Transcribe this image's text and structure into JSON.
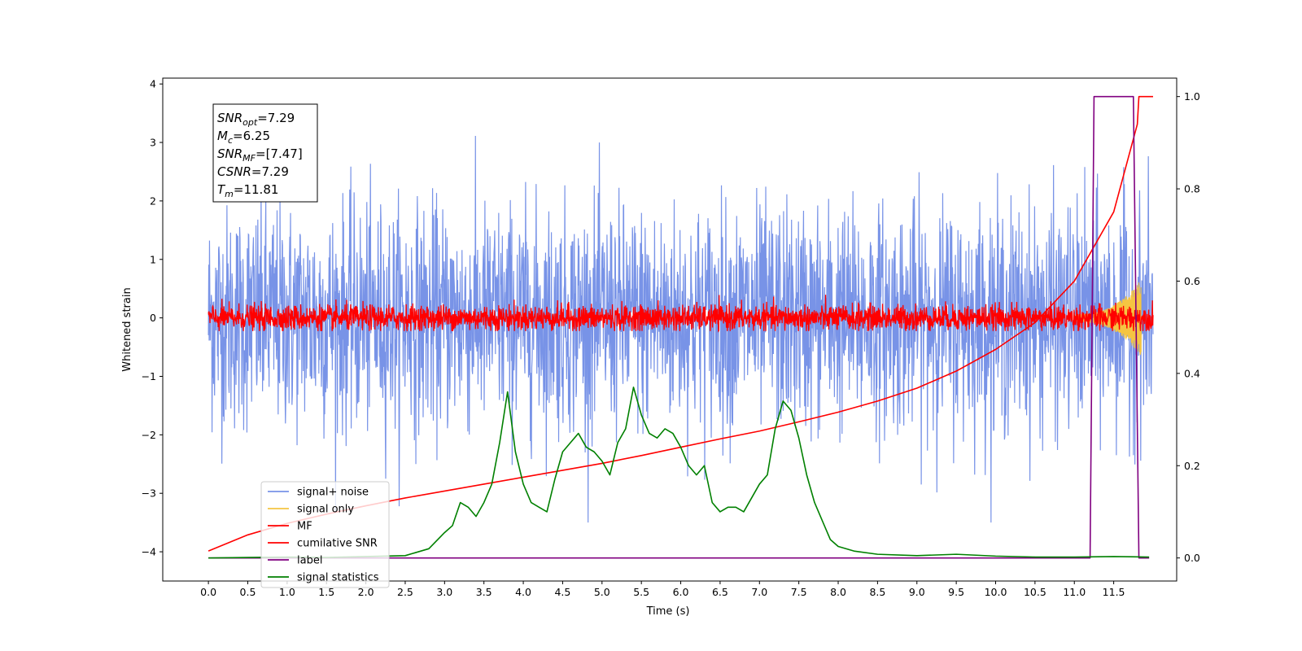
{
  "chart_data": {
    "type": "line",
    "title": "",
    "xlabel": "Time (s)",
    "ylabel_left": "Whitened strain",
    "ylabel_right": "",
    "xlim": [
      -0.58,
      12.3
    ],
    "ylim_left": [
      -4.5,
      4.1
    ],
    "ylim_right": [
      -0.05,
      1.04
    ],
    "x_ticks": [
      0.0,
      0.5,
      1.0,
      1.5,
      2.0,
      2.5,
      3.0,
      3.5,
      4.0,
      4.5,
      5.0,
      5.5,
      6.0,
      6.5,
      7.0,
      7.5,
      8.0,
      8.5,
      9.0,
      9.5,
      10.0,
      10.5,
      11.0,
      11.5
    ],
    "x_tick_labels": [
      "0.0",
      "0.5",
      "1.0",
      "1.5",
      "2.0",
      "2.5",
      "3.0",
      "3.5",
      "4.0",
      "4.5",
      "5.0",
      "5.5",
      "6.0",
      "6.5",
      "7.0",
      "7.5",
      "8.0",
      "8.5",
      "9.0",
      "9.5",
      "10.0",
      "10.5",
      "11.0",
      "11.5"
    ],
    "y_ticks_left": [
      -4,
      -3,
      -2,
      -1,
      0,
      1,
      2,
      3,
      4
    ],
    "y_tick_labels_left": [
      "−4",
      "−3",
      "−2",
      "−1",
      "0",
      "1",
      "2",
      "3",
      "4"
    ],
    "y_ticks_right": [
      0.0,
      0.2,
      0.4,
      0.6,
      0.8,
      1.0
    ],
    "y_tick_labels_right": [
      "0.0",
      "0.2",
      "0.4",
      "0.6",
      "0.8",
      "1.0"
    ],
    "grid": false,
    "legend_placement": "lower-left",
    "annotation": {
      "lines": [
        {
          "base": "SNR",
          "sub": "opt",
          "value": "=7.29"
        },
        {
          "base": "M",
          "sub": "c",
          "value": "=6.25"
        },
        {
          "base": "SNR",
          "sub": "MF",
          "value": "=[7.47]"
        },
        {
          "base": "CSNR",
          "sub": "",
          "value": "=7.29"
        },
        {
          "base": "T",
          "sub": "m",
          "value": "=11.81"
        }
      ]
    },
    "series": [
      {
        "name": "signal+ noise",
        "color": "#7893e7",
        "axis": "left",
        "noise": {
          "x_start": 0.0,
          "x_end": 12.0,
          "center": 0.0,
          "amplitude": 3.5
        }
      },
      {
        "name": "signal only",
        "color": "#f5c542",
        "axis": "left",
        "chirp": {
          "x_start": 11.0,
          "x_end": 11.85,
          "max_amplitude": 0.6
        }
      },
      {
        "name": "MF",
        "color": "#ff0000",
        "axis": "left",
        "noise": {
          "x_start": 0.0,
          "x_end": 12.0,
          "center": 0.0,
          "amplitude": 0.45
        }
      },
      {
        "name": "cumilative SNR",
        "color": "#ff0000",
        "axis": "right",
        "x": [
          0.0,
          0.5,
          1.0,
          1.5,
          2.0,
          2.5,
          3.0,
          3.5,
          4.0,
          4.5,
          5.0,
          5.5,
          6.0,
          6.5,
          7.0,
          7.5,
          8.0,
          8.5,
          9.0,
          9.5,
          10.0,
          10.5,
          11.0,
          11.5,
          11.8,
          11.82,
          12.0
        ],
        "values": [
          0.015,
          0.05,
          0.075,
          0.095,
          0.113,
          0.13,
          0.145,
          0.16,
          0.175,
          0.19,
          0.205,
          0.222,
          0.24,
          0.258,
          0.275,
          0.295,
          0.316,
          0.34,
          0.368,
          0.405,
          0.452,
          0.51,
          0.6,
          0.75,
          0.94,
          1.0,
          1.0
        ]
      },
      {
        "name": "label",
        "color": "#800080",
        "axis": "right",
        "x": [
          0.0,
          11.2,
          11.25,
          11.75,
          11.82,
          11.95
        ],
        "values": [
          0.0,
          0.0,
          1.0,
          1.0,
          0.0,
          0.0
        ]
      },
      {
        "name": "signal statistics",
        "color": "#008000",
        "axis": "right",
        "x": [
          0.0,
          0.5,
          1.0,
          1.5,
          2.0,
          2.5,
          2.8,
          3.0,
          3.1,
          3.2,
          3.3,
          3.4,
          3.5,
          3.6,
          3.7,
          3.8,
          3.9,
          4.0,
          4.1,
          4.2,
          4.3,
          4.4,
          4.5,
          4.6,
          4.7,
          4.8,
          4.9,
          5.0,
          5.1,
          5.2,
          5.3,
          5.4,
          5.5,
          5.6,
          5.7,
          5.8,
          5.9,
          6.0,
          6.1,
          6.2,
          6.3,
          6.4,
          6.5,
          6.6,
          6.7,
          6.8,
          6.9,
          7.0,
          7.1,
          7.2,
          7.3,
          7.4,
          7.5,
          7.6,
          7.7,
          7.8,
          7.9,
          8.0,
          8.2,
          8.5,
          9.0,
          9.5,
          10.0,
          10.5,
          11.0,
          11.5,
          11.95
        ],
        "values": [
          0.0,
          0.001,
          0.002,
          0.001,
          0.003,
          0.005,
          0.02,
          0.055,
          0.07,
          0.12,
          0.11,
          0.09,
          0.12,
          0.16,
          0.25,
          0.36,
          0.23,
          0.16,
          0.12,
          0.11,
          0.1,
          0.17,
          0.23,
          0.25,
          0.27,
          0.24,
          0.23,
          0.21,
          0.18,
          0.25,
          0.28,
          0.37,
          0.31,
          0.27,
          0.26,
          0.28,
          0.27,
          0.24,
          0.2,
          0.18,
          0.2,
          0.12,
          0.1,
          0.11,
          0.11,
          0.1,
          0.13,
          0.16,
          0.18,
          0.28,
          0.34,
          0.32,
          0.26,
          0.18,
          0.12,
          0.08,
          0.04,
          0.025,
          0.015,
          0.008,
          0.005,
          0.008,
          0.004,
          0.002,
          0.002,
          0.003,
          0.002
        ]
      }
    ]
  }
}
